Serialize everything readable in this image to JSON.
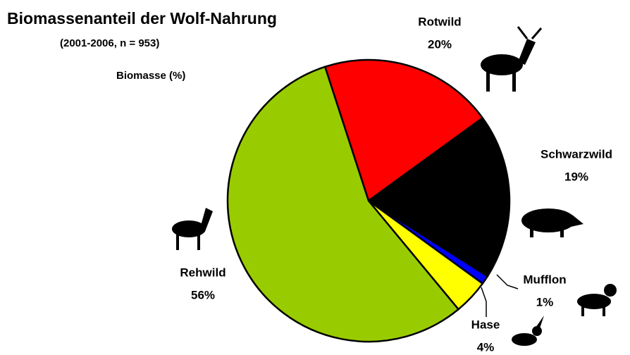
{
  "chart_data": {
    "type": "pie",
    "title": "Biomassenanteil der Wolf-Nahrung",
    "subtitle": "(2001-2006, n = 953)",
    "value_axis_label": "Biomasse (%)",
    "categories": [
      "Rotwild",
      "Schwarzwild",
      "Mufflon",
      "Hase",
      "Rehwild"
    ],
    "values": [
      20,
      19,
      1,
      4,
      56
    ],
    "value_labels": [
      "20%",
      "19%",
      "1%",
      "4%",
      "56%"
    ],
    "colors": [
      "#ff0000",
      "#000000",
      "#0000ff",
      "#ffff00",
      "#99cc00"
    ]
  }
}
